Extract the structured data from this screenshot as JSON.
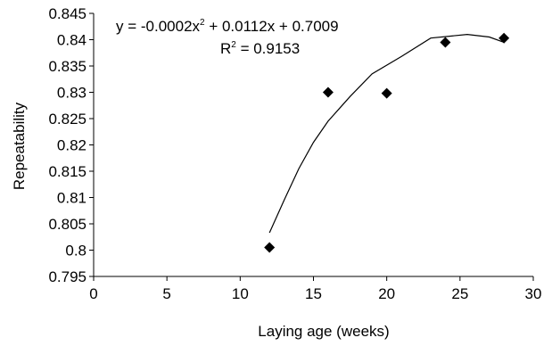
{
  "chart_data": {
    "type": "scatter",
    "title": "",
    "xlabel": "Laying age (weeks)",
    "ylabel": "Repeatability",
    "xlim": [
      0,
      30
    ],
    "ylim": [
      0.795,
      0.845
    ],
    "x_ticks": [
      0,
      5,
      10,
      15,
      20,
      25,
      30
    ],
    "x_tick_labels": [
      "0",
      "5",
      "10",
      "15",
      "20",
      "25",
      "30"
    ],
    "y_ticks": [
      0.795,
      0.8,
      0.805,
      0.81,
      0.815,
      0.82,
      0.825,
      0.83,
      0.835,
      0.84,
      0.845
    ],
    "y_tick_labels": [
      "0.795",
      "0.8",
      "0.805",
      "0.81",
      "0.815",
      "0.82",
      "0.825",
      "0.83",
      "0.835",
      "0.84",
      "0.845"
    ],
    "grid": false,
    "legend": "none",
    "series": [
      {
        "marker": "diamond",
        "color": "#000000",
        "x": [
          12,
          16,
          20,
          24,
          28
        ],
        "y": [
          0.8005,
          0.83,
          0.8298,
          0.8395,
          0.8403
        ]
      }
    ],
    "trendline": {
      "type": "polynomial",
      "color": "#000000",
      "x_range": [
        12,
        28
      ],
      "x": [
        12,
        13,
        14,
        15,
        16,
        17.5,
        19,
        21,
        23,
        25.5,
        27,
        28
      ],
      "y": [
        0.8033,
        0.8095,
        0.8155,
        0.8205,
        0.8245,
        0.8292,
        0.8335,
        0.8368,
        0.8403,
        0.841,
        0.8405,
        0.8395
      ]
    },
    "annotations": {
      "equation": "y = -0.0002x",
      "equation_sup": "2",
      "equation_tail": " + 0.0112x + 0.7009",
      "r2_prefix": "R",
      "r2_sup": "2",
      "r2_tail": " = 0.9153"
    }
  }
}
